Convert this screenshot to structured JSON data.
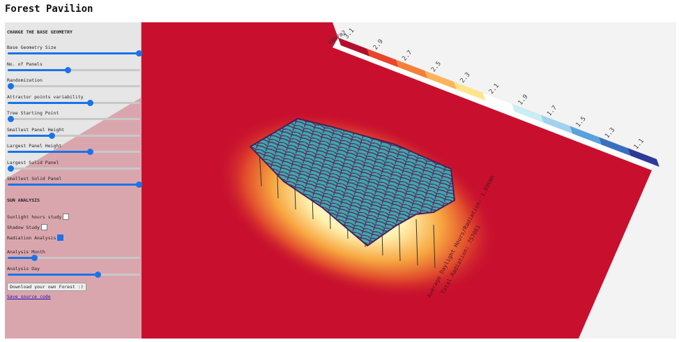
{
  "header": {
    "title": "Forest Pavilion"
  },
  "controls": {
    "section_title": "CHANGE THE BASE GEOMETRY",
    "sliders": [
      "Base Geometry Size",
      "No. of Panels",
      "Randomization",
      "Attractor points variability",
      "Tree Starting Point",
      "Smallest Panel Height",
      "Largest Panel Height",
      "Largest Solid Panel",
      "Smallest Solid Panel"
    ]
  },
  "sun_analysis": {
    "section_title": "SUN ANALYSIS",
    "checkboxes": [
      {
        "label": "Sunlight hours study",
        "checked": false
      },
      {
        "label": "Shadow Study",
        "checked": false
      },
      {
        "label": "Radiation Analysis",
        "checked": true
      }
    ],
    "sliders": [
      "Analysis Month",
      "Analysis Day"
    ]
  },
  "button": "Download your own Forest :)",
  "link": "Save source code",
  "legend": {
    "unit": "kWh/m2",
    "labels": [
      3.1,
      2.9,
      2.7,
      2.5,
      2.3,
      2.1,
      1.9,
      1.7,
      1.5,
      1.3,
      1.1
    ]
  },
  "annotations": [
    "Average Daylight Hours/Radiation: 1.69kWh",
    "Total Radiation: 757061"
  ]
}
